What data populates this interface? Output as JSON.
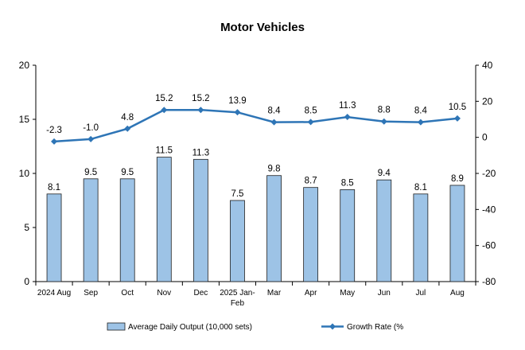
{
  "chart_data": {
    "type": "bar",
    "title": "Motor Vehicles",
    "categories": [
      "2024 Aug",
      "Sep",
      "Oct",
      "Nov",
      "Dec",
      "2025 Jan-Feb",
      "Mar",
      "Apr",
      "May",
      "Jun",
      "Jul",
      "Aug"
    ],
    "series": [
      {
        "name": "Average Daily Output (10,000 sets)",
        "type": "bar",
        "axis": "left",
        "color": "#9dc3e6",
        "values": [
          8.1,
          9.5,
          9.5,
          11.5,
          11.3,
          7.5,
          9.8,
          8.7,
          8.5,
          9.4,
          8.1,
          8.9
        ]
      },
      {
        "name": "Growth Rate (%",
        "type": "line",
        "axis": "right",
        "color": "#2e75b6",
        "values": [
          -2.3,
          -1.0,
          4.8,
          15.2,
          15.2,
          13.9,
          8.4,
          8.5,
          11.3,
          8.8,
          8.4,
          10.5
        ]
      }
    ],
    "ylim_left": [
      0,
      20
    ],
    "yticks_left": [
      0,
      5,
      10,
      15,
      20
    ],
    "ylim_right": [
      -80,
      40
    ],
    "yticks_right": [
      -80,
      -60,
      -40,
      -20,
      0,
      20,
      40
    ],
    "grid": false,
    "legend_position": "bottom",
    "data_labels": true
  }
}
